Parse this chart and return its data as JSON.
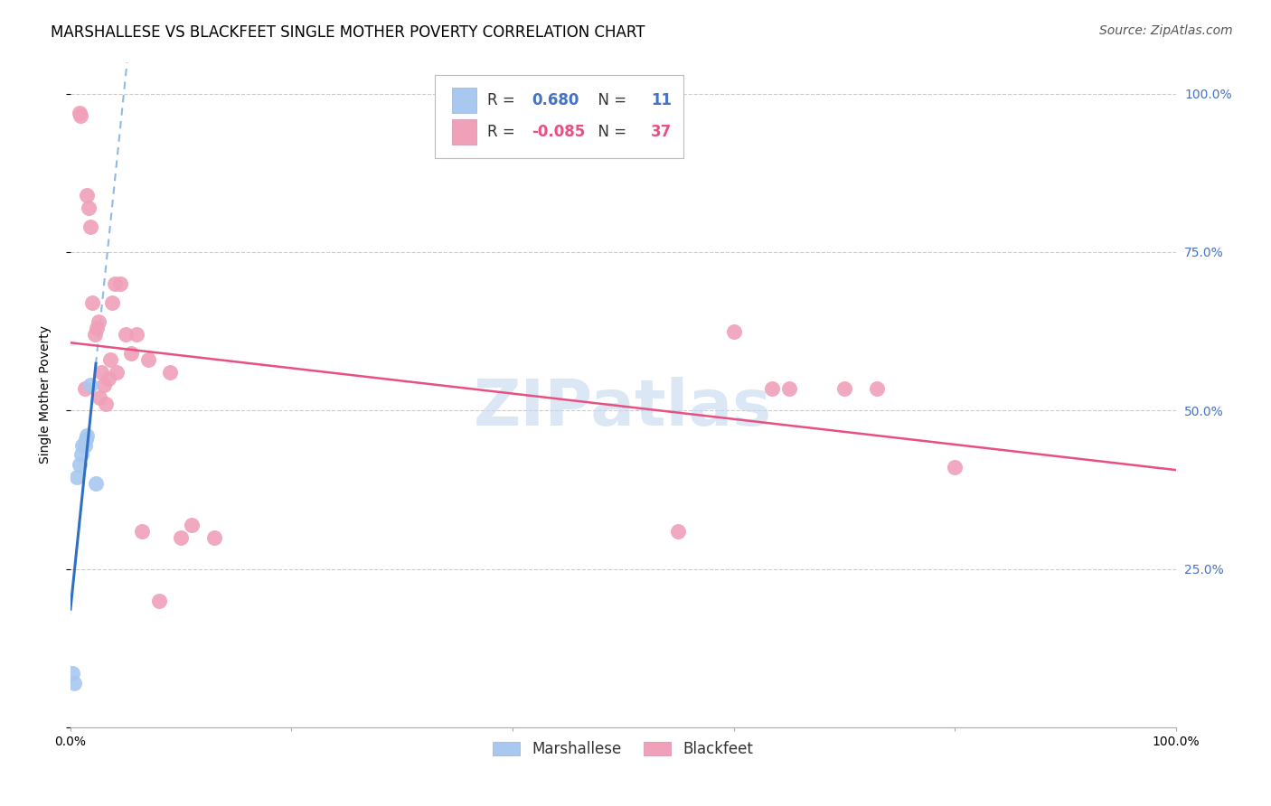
{
  "title": "MARSHALLESE VS BLACKFEET SINGLE MOTHER POVERTY CORRELATION CHART",
  "source": "Source: ZipAtlas.com",
  "ylabel": "Single Mother Poverty",
  "xlim": [
    0.0,
    1.0
  ],
  "ylim": [
    0.0,
    1.05
  ],
  "yticks": [
    0.0,
    0.25,
    0.5,
    0.75,
    1.0
  ],
  "ytick_labels": [
    "",
    "25.0%",
    "50.0%",
    "75.0%",
    "100.0%"
  ],
  "xticks": [
    0.0,
    0.2,
    0.4,
    0.6,
    0.8,
    1.0
  ],
  "xtick_labels": [
    "0.0%",
    "",
    "",
    "",
    "",
    "100.0%"
  ],
  "grid_color": "#cccccc",
  "background_color": "#ffffff",
  "marshallese_color": "#a8c8f0",
  "blackfeet_color": "#f0a0b8",
  "marshallese_R": 0.68,
  "marshallese_N": 11,
  "blackfeet_R": -0.085,
  "blackfeet_N": 37,
  "marsh_x": [
    0.002,
    0.006,
    0.008,
    0.01,
    0.011,
    0.013,
    0.014,
    0.015,
    0.018,
    0.023,
    0.003
  ],
  "marsh_y": [
    0.085,
    0.395,
    0.415,
    0.43,
    0.445,
    0.445,
    0.455,
    0.46,
    0.54,
    0.385,
    0.07
  ],
  "bf_x": [
    0.008,
    0.009,
    0.013,
    0.015,
    0.016,
    0.018,
    0.02,
    0.022,
    0.024,
    0.025,
    0.026,
    0.028,
    0.03,
    0.032,
    0.034,
    0.036,
    0.038,
    0.04,
    0.042,
    0.045,
    0.05,
    0.055,
    0.06,
    0.065,
    0.07,
    0.08,
    0.09,
    0.1,
    0.11,
    0.13,
    0.55,
    0.6,
    0.635,
    0.65,
    0.7,
    0.73,
    0.8
  ],
  "bf_y": [
    0.97,
    0.965,
    0.535,
    0.84,
    0.82,
    0.79,
    0.67,
    0.62,
    0.63,
    0.64,
    0.52,
    0.56,
    0.54,
    0.51,
    0.55,
    0.58,
    0.67,
    0.7,
    0.56,
    0.7,
    0.62,
    0.59,
    0.62,
    0.31,
    0.58,
    0.2,
    0.56,
    0.3,
    0.32,
    0.3,
    0.31,
    0.625,
    0.535,
    0.535,
    0.535,
    0.535,
    0.41
  ],
  "marsh_line_color": "#3070c0",
  "marsh_dash_color": "#90b8e8",
  "bf_line_color": "#e85080",
  "title_fontsize": 12,
  "source_fontsize": 10,
  "ylabel_fontsize": 10,
  "tick_fontsize": 10,
  "legend_fontsize": 12,
  "watermark_text": "ZIPatlas",
  "watermark_color": "#c5d8f0",
  "legend_text_1": "R =  0.680   N =  11",
  "legend_text_2": "R = -0.085   N = 37"
}
